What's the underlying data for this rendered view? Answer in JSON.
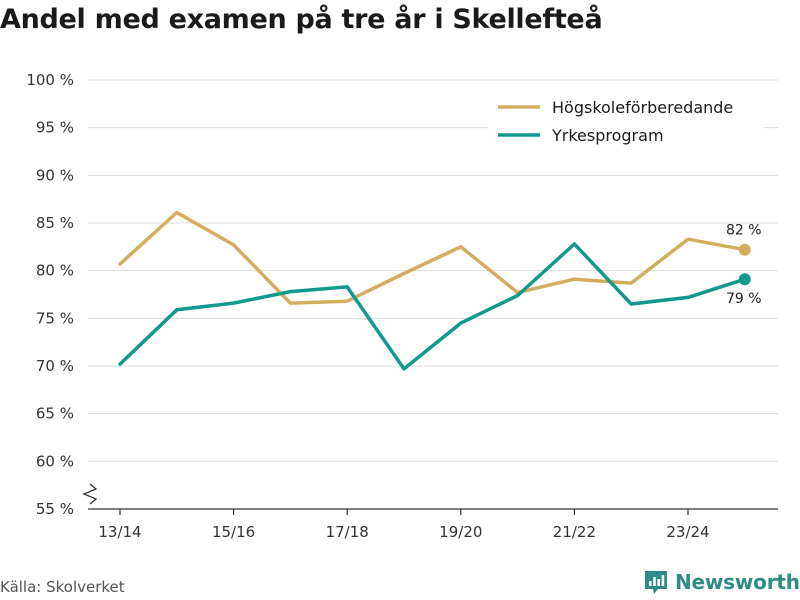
{
  "title": "Andel med examen på tre år i Skellefteå",
  "source": "Källa: Skolverket",
  "brand": {
    "name": "Newsworthy",
    "icon": "newsworthy-logo-icon",
    "color": "#2e8b86"
  },
  "chart_data": {
    "type": "line",
    "title": "Andel med examen på tre år i Skellefteå",
    "xlabel": "",
    "ylabel": "",
    "ylim": [
      55,
      100
    ],
    "yticks": [
      55,
      60,
      65,
      70,
      75,
      80,
      85,
      90,
      95,
      100
    ],
    "ytick_suffix": " %",
    "axis_break": true,
    "grid": true,
    "legend_position": "top-right",
    "categories": [
      "13/14",
      "14/15",
      "15/16",
      "16/17",
      "17/18",
      "18/19",
      "19/20",
      "20/21",
      "21/22",
      "22/23",
      "23/24",
      "24/25"
    ],
    "x_tick_labels": [
      "13/14",
      "",
      "15/16",
      "",
      "17/18",
      "",
      "19/20",
      "",
      "21/22",
      "",
      "23/24",
      ""
    ],
    "series": [
      {
        "name": "Högskoleförberedande",
        "color": "#d4ac5f",
        "values": [
          80.7,
          86.1,
          82.7,
          76.6,
          76.8,
          79.7,
          82.5,
          77.7,
          79.1,
          78.7,
          83.3,
          82.2
        ],
        "end_label": "82 %"
      },
      {
        "name": "Yrkesprogram",
        "color": "#10998c",
        "values": [
          70.2,
          75.9,
          76.6,
          77.8,
          78.3,
          69.7,
          74.5,
          77.4,
          82.8,
          76.5,
          77.2,
          79.1
        ],
        "end_label": "79 %"
      }
    ]
  }
}
